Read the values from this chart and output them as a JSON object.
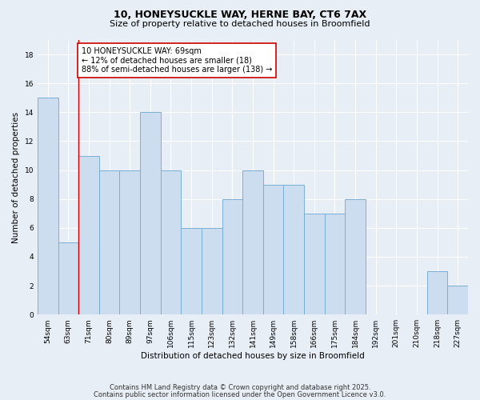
{
  "title_line1": "10, HONEYSUCKLE WAY, HERNE BAY, CT6 7AX",
  "title_line2": "Size of property relative to detached houses in Broomfield",
  "xlabel": "Distribution of detached houses by size in Broomfield",
  "ylabel": "Number of detached properties",
  "categories": [
    "54sqm",
    "63sqm",
    "71sqm",
    "80sqm",
    "89sqm",
    "97sqm",
    "106sqm",
    "115sqm",
    "123sqm",
    "132sqm",
    "141sqm",
    "149sqm",
    "158sqm",
    "166sqm",
    "175sqm",
    "184sqm",
    "192sqm",
    "201sqm",
    "210sqm",
    "218sqm",
    "227sqm"
  ],
  "values": [
    15,
    5,
    11,
    10,
    10,
    14,
    10,
    6,
    6,
    8,
    10,
    9,
    9,
    7,
    7,
    8,
    0,
    0,
    0,
    3,
    2
  ],
  "bar_color": "#ccddef",
  "bar_edge_color": "#7aafd4",
  "annotation_text": "10 HONEYSUCKLE WAY: 69sqm\n← 12% of detached houses are smaller (18)\n88% of semi-detached houses are larger (138) →",
  "annotation_box_facecolor": "#ffffff",
  "annotation_box_edgecolor": "#cc0000",
  "ref_line_color": "#cc0000",
  "ylim": [
    0,
    19
  ],
  "yticks": [
    0,
    2,
    4,
    6,
    8,
    10,
    12,
    14,
    16,
    18
  ],
  "footer_line1": "Contains HM Land Registry data © Crown copyright and database right 2025.",
  "footer_line2": "Contains public sector information licensed under the Open Government Licence v3.0.",
  "bg_color": "#e8eef5",
  "grid_color": "#ffffff",
  "title_fontsize": 9,
  "subtitle_fontsize": 8,
  "axis_label_fontsize": 7.5,
  "tick_fontsize": 6.5,
  "footer_fontsize": 6,
  "annotation_fontsize": 7
}
